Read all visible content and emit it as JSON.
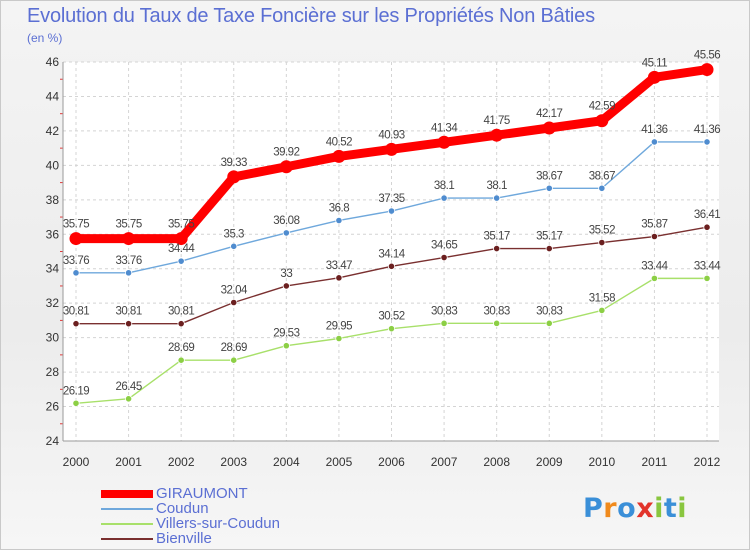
{
  "header": {
    "title": "Evolution du Taux de Taxe Foncière sur les Propriétés Non Bâties",
    "subtitle": "(en %)"
  },
  "watermark": {
    "text": "Proxiti",
    "letter_colors": [
      "#3a8fd8",
      "#f08a1c",
      "#3a8fd8",
      "#e2342b",
      "#89c63f",
      "#3a8fd8",
      "#89c63f"
    ]
  },
  "chart_data": {
    "type": "line",
    "title": "Evolution du Taux de Taxe Foncière sur les Propriétés Non Bâties",
    "subtitle": "(en %)",
    "xlabel": "",
    "ylabel": "",
    "x": [
      "2000",
      "2001",
      "2002",
      "2003",
      "2004",
      "2005",
      "2006",
      "2007",
      "2008",
      "2009",
      "2010",
      "2011",
      "2012"
    ],
    "ylim": [
      24,
      46
    ],
    "yticks": [
      24,
      26,
      28,
      30,
      32,
      34,
      36,
      38,
      40,
      42,
      44,
      46
    ],
    "grid": true,
    "legend_position": "bottom-left",
    "series": [
      {
        "name": "GIRAUMONT",
        "color": "#ff0000",
        "emphasis": true,
        "values": [
          35.75,
          35.75,
          35.75,
          39.33,
          39.92,
          40.52,
          40.93,
          41.34,
          41.75,
          42.17,
          42.59,
          45.11,
          45.56
        ],
        "labels": [
          "35.75",
          "35.75",
          "35.75",
          "39.33",
          "39.92",
          "40.52",
          "40.93",
          "41.34",
          "41.75",
          "42.17",
          "42.59",
          "45.11",
          "45.56"
        ]
      },
      {
        "name": "Coudun",
        "color": "#6fa8dc",
        "marker_color": "#4f8ccf",
        "values": [
          33.76,
          33.76,
          34.44,
          35.3,
          36.08,
          36.8,
          37.35,
          38.1,
          38.1,
          38.67,
          38.67,
          41.36,
          41.36
        ],
        "labels": [
          "33.76",
          "33.76",
          "34.44",
          "35.3",
          "36.08",
          "36.8",
          "37.35",
          "38.1",
          "38.1",
          "38.67",
          "38.67",
          "41.36",
          "41.36"
        ]
      },
      {
        "name": "Villers-sur-Coudun",
        "color": "#a8e06a",
        "marker_color": "#8ccf45",
        "values": [
          26.19,
          26.45,
          28.69,
          28.69,
          29.53,
          29.95,
          30.52,
          30.83,
          30.83,
          30.83,
          31.58,
          33.44,
          33.44
        ],
        "labels": [
          "26.19",
          "26.45",
          "28.69",
          "28.69",
          "29.53",
          "29.95",
          "30.52",
          "30.83",
          "30.83",
          "30.83",
          "31.58",
          "33.44",
          "33.44"
        ]
      },
      {
        "name": "Bienville",
        "color": "#7a3030",
        "marker_color": "#6b1f1f",
        "values": [
          30.81,
          30.81,
          30.81,
          32.04,
          33,
          33.47,
          34.14,
          34.65,
          35.17,
          35.17,
          35.52,
          35.87,
          36.41
        ],
        "labels": [
          "30.81",
          "30.81",
          "30.81",
          "32.04",
          "33",
          "33.47",
          "34.14",
          "34.65",
          "35.17",
          "35.17",
          "35.52",
          "35.87",
          "36.41"
        ]
      }
    ]
  }
}
